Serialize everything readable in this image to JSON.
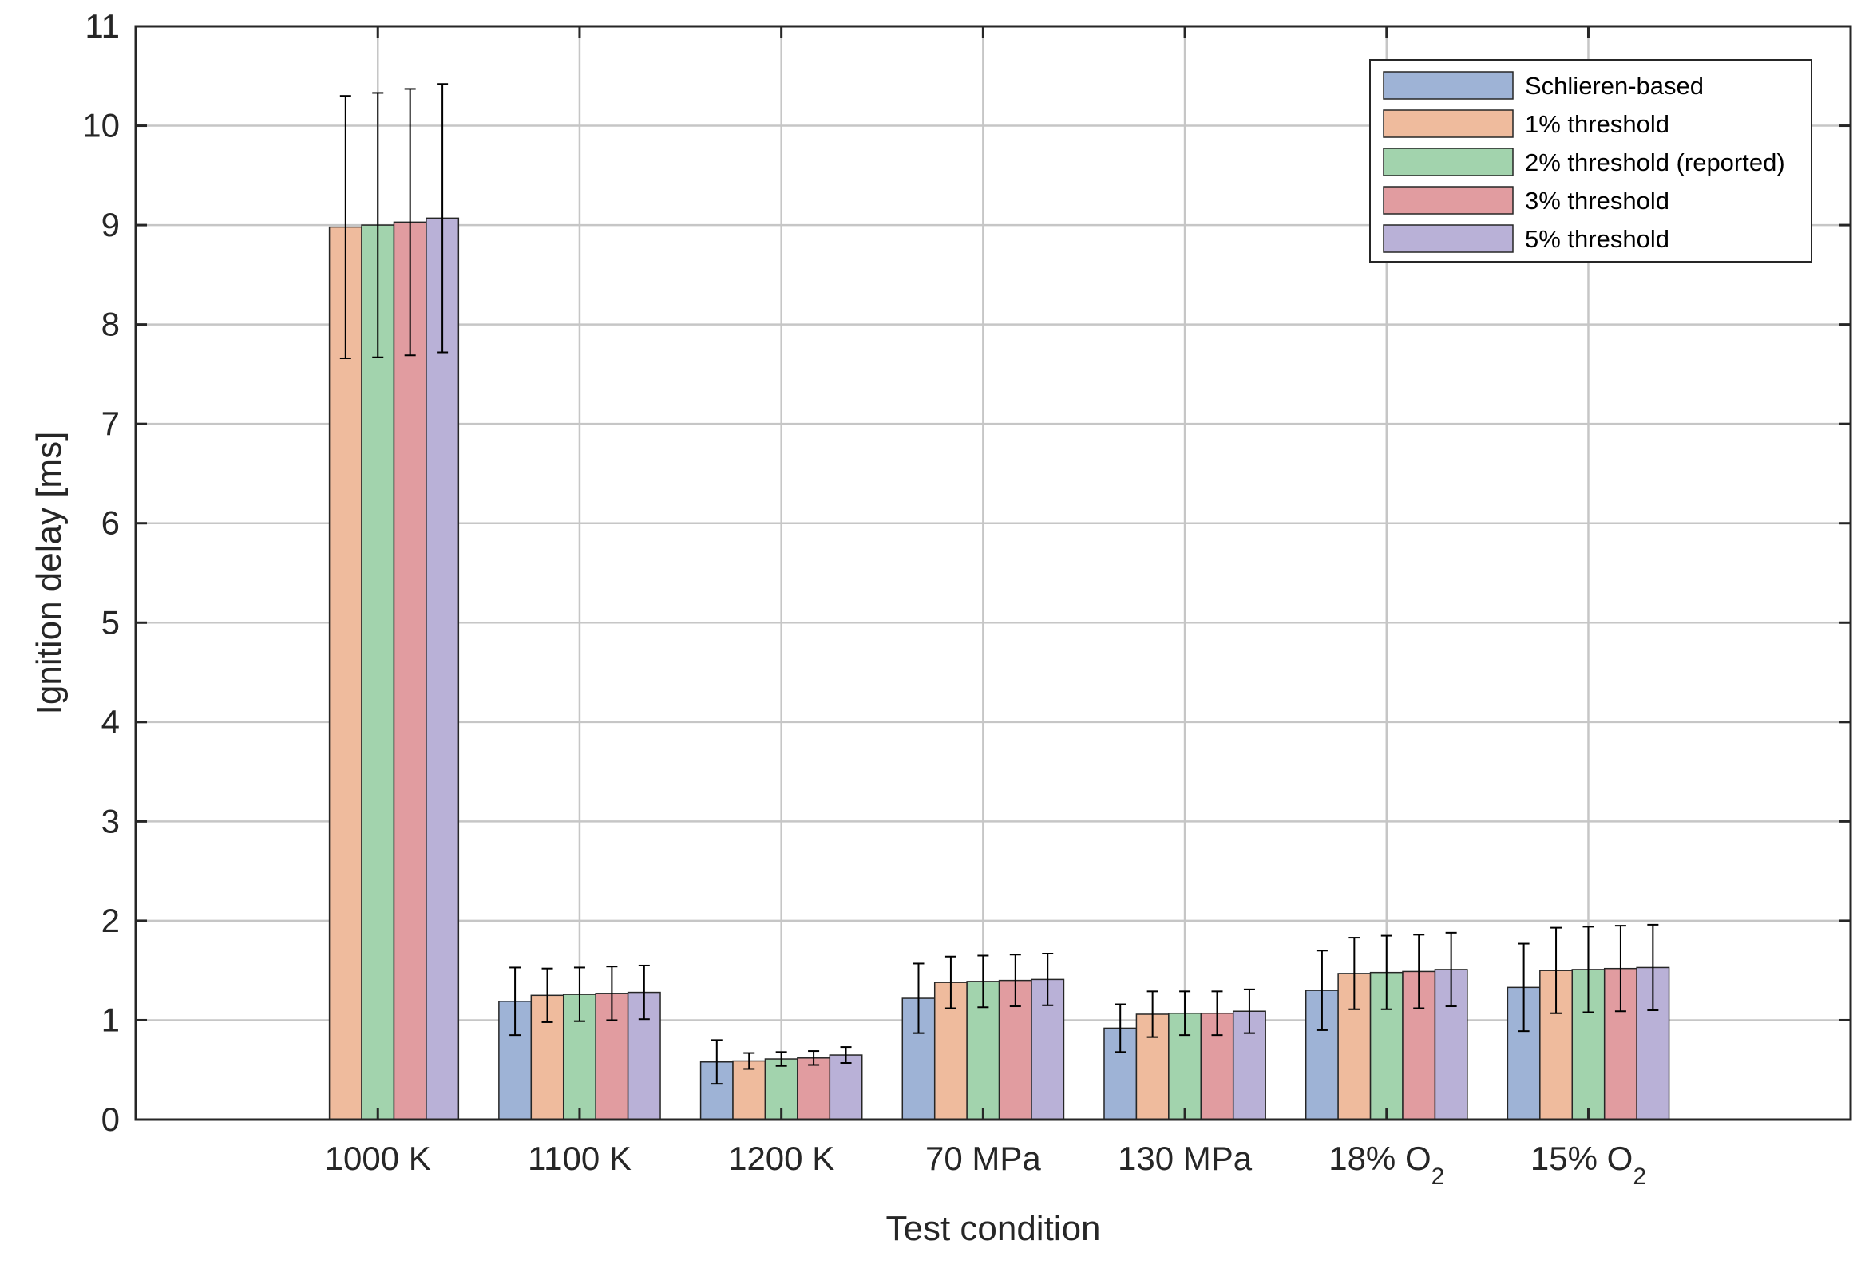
{
  "chart_data": {
    "type": "bar",
    "xlabel": "Test condition",
    "ylabel": "Ignition delay [ms]",
    "ylim": [
      0,
      11
    ],
    "yticks": [
      0,
      1,
      2,
      3,
      4,
      5,
      6,
      7,
      8,
      9,
      10,
      11
    ],
    "grid": true,
    "legend_position": "top-right",
    "categories": [
      {
        "label": "1000 K",
        "sub": ""
      },
      {
        "label": "1100 K",
        "sub": ""
      },
      {
        "label": "1200 K",
        "sub": ""
      },
      {
        "label": "70 MPa",
        "sub": ""
      },
      {
        "label": "130 MPa",
        "sub": ""
      },
      {
        "label": "18% O",
        "sub": "2"
      },
      {
        "label": "15% O",
        "sub": "2"
      }
    ],
    "series": [
      {
        "name": "Schlieren-based",
        "color": "#9eb3d6",
        "values": [
          null,
          1.19,
          0.58,
          1.22,
          0.92,
          1.3,
          1.33
        ],
        "errors": [
          null,
          0.34,
          0.22,
          0.35,
          0.24,
          0.4,
          0.44
        ]
      },
      {
        "name": "1% threshold",
        "color": "#efbb9d",
        "values": [
          8.98,
          1.25,
          0.59,
          1.38,
          1.06,
          1.47,
          1.5
        ],
        "errors": [
          1.32,
          0.27,
          0.08,
          0.26,
          0.23,
          0.36,
          0.43
        ]
      },
      {
        "name": "2% threshold (reported)",
        "color": "#a2d3ad",
        "values": [
          9.0,
          1.26,
          0.61,
          1.39,
          1.07,
          1.48,
          1.51
        ],
        "errors": [
          1.33,
          0.27,
          0.07,
          0.26,
          0.22,
          0.37,
          0.43
        ]
      },
      {
        "name": "3% threshold",
        "color": "#e19ca0",
        "values": [
          9.03,
          1.27,
          0.62,
          1.4,
          1.07,
          1.49,
          1.52
        ],
        "errors": [
          1.34,
          0.27,
          0.07,
          0.26,
          0.22,
          0.37,
          0.43
        ]
      },
      {
        "name": "5% threshold",
        "color": "#b9b1d7",
        "values": [
          9.07,
          1.28,
          0.65,
          1.41,
          1.09,
          1.51,
          1.53
        ],
        "errors": [
          1.35,
          0.27,
          0.08,
          0.26,
          0.22,
          0.37,
          0.43
        ]
      }
    ]
  }
}
